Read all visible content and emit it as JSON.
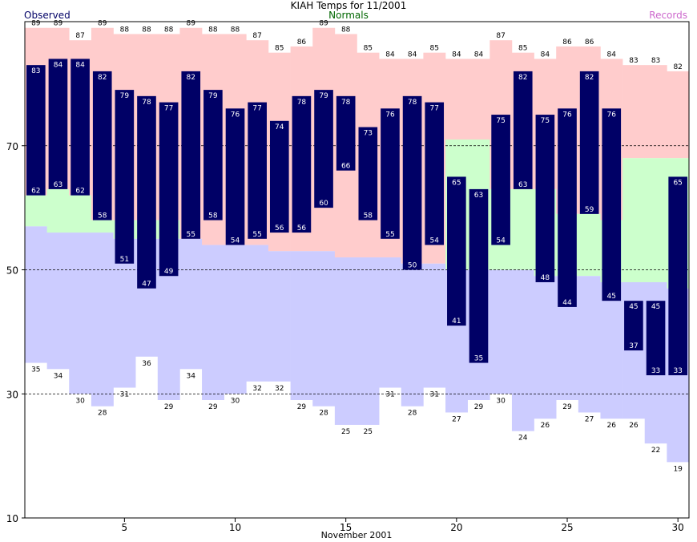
{
  "chart_data": {
    "type": "bar",
    "title": "KIAH Temps for 11/2001",
    "legend": {
      "observed": "Observed",
      "normals": "Normals",
      "records": "Records",
      "observed_color": "#000066",
      "normals_color": "#006600",
      "records_color": "#cc66cc"
    },
    "xlabel": "November 2001",
    "ylabel": "",
    "ylim": [
      10,
      90
    ],
    "xlim": [
      0.5,
      30.5
    ],
    "y_ticks": [
      10,
      30,
      50,
      70
    ],
    "x_ticks": [
      5,
      10,
      15,
      20,
      25,
      30
    ],
    "gridlines": [
      30,
      50,
      70
    ],
    "grid": "dashed horizontal at 30, 50, 70",
    "colors": {
      "observed_bar": "#000066",
      "record_band": "#ffcccc",
      "normal_band": "#ccffcc",
      "below_normal_band": "#ccccff",
      "label_on_bar": "#ffffff",
      "label_off_bar": "#000000"
    },
    "days": [
      1,
      2,
      3,
      4,
      5,
      6,
      7,
      8,
      9,
      10,
      11,
      12,
      13,
      14,
      15,
      16,
      17,
      18,
      19,
      20,
      21,
      22,
      23,
      24,
      25,
      26,
      27,
      28,
      29,
      30
    ],
    "series": [
      {
        "name": "Observed High",
        "values": [
          83,
          84,
          84,
          82,
          79,
          78,
          77,
          82,
          79,
          76,
          77,
          74,
          78,
          79,
          78,
          73,
          76,
          78,
          77,
          65,
          63,
          75,
          82,
          75,
          76,
          82,
          76,
          45,
          45,
          65
        ]
      },
      {
        "name": "Observed Low",
        "values": [
          62,
          63,
          62,
          58,
          51,
          47,
          49,
          55,
          58,
          54,
          55,
          56,
          56,
          60,
          66,
          58,
          55,
          50,
          54,
          41,
          35,
          54,
          63,
          48,
          44,
          59,
          45,
          37,
          33,
          33
        ]
      },
      {
        "name": "Record High",
        "values": [
          89,
          89,
          87,
          89,
          88,
          88,
          88,
          89,
          88,
          88,
          87,
          85,
          86,
          89,
          88,
          85,
          84,
          84,
          85,
          84,
          84,
          87,
          85,
          84,
          86,
          86,
          84,
          83,
          83,
          82
        ]
      },
      {
        "name": "Record Low",
        "values": [
          35,
          34,
          30,
          28,
          31,
          36,
          29,
          34,
          29,
          30,
          32,
          32,
          29,
          28,
          25,
          25,
          31,
          28,
          31,
          27,
          29,
          30,
          24,
          26,
          29,
          27,
          26,
          26,
          22,
          19
        ]
      },
      {
        "name": "Normal High",
        "values": [
          62,
          63,
          62,
          58,
          58,
          58,
          58,
          55,
          54,
          54,
          54,
          53,
          53,
          53,
          52,
          52,
          52,
          51,
          51,
          71,
          71,
          63,
          63,
          63,
          59,
          59,
          58,
          68,
          68,
          68
        ]
      },
      {
        "name": "Normal Low",
        "values": [
          57,
          56,
          56,
          56,
          55,
          55,
          55,
          55,
          54,
          54,
          54,
          53,
          53,
          53,
          52,
          52,
          52,
          51,
          51,
          50,
          50,
          50,
          50,
          49,
          49,
          49,
          48,
          48,
          48,
          47
        ]
      }
    ]
  }
}
